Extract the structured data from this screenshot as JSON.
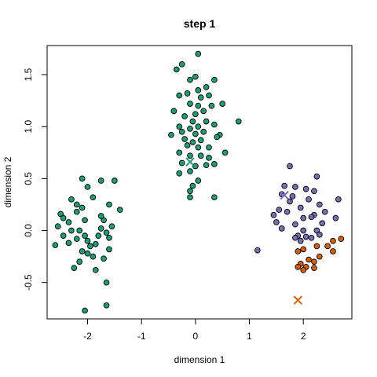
{
  "chart_data": {
    "type": "scatter",
    "title": "step 1",
    "xlabel": "dimension 1",
    "ylabel": "dimension 2",
    "xlim": [
      -2.75,
      2.9
    ],
    "ylim": [
      -0.85,
      1.78
    ],
    "x_ticks": [
      -2,
      -1,
      0,
      1,
      2
    ],
    "x_tick_labels": [
      "-2",
      "-1",
      "0",
      "1",
      "2"
    ],
    "y_ticks": [
      -0.5,
      0.0,
      0.5,
      1.0,
      1.5
    ],
    "y_tick_labels": [
      "-0.5",
      "0.0",
      "0.5",
      "1.0",
      "1.5"
    ],
    "grid": false,
    "legend": "none",
    "point_edge_color": "#000000",
    "series": [
      {
        "color": "#1b9e77",
        "points": [
          [
            -2.5,
            0.16
          ],
          [
            -2.45,
            0.12
          ],
          [
            -2.35,
            0.08
          ],
          [
            -2.55,
            0.04
          ],
          [
            -2.3,
            0.0
          ],
          [
            -2.45,
            -0.05
          ],
          [
            -2.6,
            -0.14
          ],
          [
            -2.35,
            -0.12
          ],
          [
            -2.2,
            0.18
          ],
          [
            -2.1,
            0.22
          ],
          [
            -2.05,
            0.1
          ],
          [
            -2.15,
            0.0
          ],
          [
            -2.2,
            -0.08
          ],
          [
            -2.05,
            -0.05
          ],
          [
            -2.0,
            -0.1
          ],
          [
            -1.95,
            -0.15
          ],
          [
            -2.1,
            -0.2
          ],
          [
            -2.0,
            -0.22
          ],
          [
            -2.15,
            -0.3
          ],
          [
            -2.25,
            -0.36
          ],
          [
            -1.9,
            -0.25
          ],
          [
            -1.85,
            -0.13
          ],
          [
            -1.8,
            -0.05
          ],
          [
            -1.75,
            0.02
          ],
          [
            -1.7,
            0.1
          ],
          [
            -1.75,
            0.14
          ],
          [
            -1.65,
            -0.02
          ],
          [
            -1.6,
            -0.07
          ],
          [
            -1.6,
            -0.18
          ],
          [
            -1.7,
            -0.27
          ],
          [
            -1.55,
            0.04
          ],
          [
            -1.6,
            0.25
          ],
          [
            -1.5,
            0.48
          ],
          [
            -1.75,
            0.48
          ],
          [
            -2.1,
            0.5
          ],
          [
            -2.0,
            0.42
          ],
          [
            -1.9,
            0.32
          ],
          [
            -1.4,
            0.2
          ],
          [
            -2.3,
            0.3
          ],
          [
            -2.2,
            0.25
          ],
          [
            -1.85,
            -0.38
          ],
          [
            -1.65,
            -0.5
          ],
          [
            -1.65,
            -0.72
          ],
          [
            -2.05,
            -0.77
          ]
        ]
      },
      {
        "color": "#1b9e77",
        "points": [
          [
            0.05,
            1.7
          ],
          [
            -0.35,
            1.55
          ],
          [
            -0.25,
            1.6
          ],
          [
            0.0,
            1.48
          ],
          [
            -0.1,
            1.45
          ],
          [
            0.35,
            1.45
          ],
          [
            0.2,
            1.38
          ],
          [
            0.05,
            1.35
          ],
          [
            -0.3,
            1.3
          ],
          [
            -0.15,
            1.32
          ],
          [
            0.1,
            1.28
          ],
          [
            0.25,
            1.3
          ],
          [
            -0.1,
            1.22
          ],
          [
            0.05,
            1.2
          ],
          [
            0.3,
            1.2
          ],
          [
            0.5,
            1.22
          ],
          [
            -0.4,
            1.15
          ],
          [
            -0.2,
            1.1
          ],
          [
            0.0,
            1.12
          ],
          [
            0.15,
            1.15
          ],
          [
            -0.05,
            1.05
          ],
          [
            0.2,
            1.05
          ],
          [
            -0.3,
            1.0
          ],
          [
            -0.1,
            0.98
          ],
          [
            0.05,
            1.0
          ],
          [
            0.35,
            1.02
          ],
          [
            0.8,
            1.05
          ],
          [
            -0.25,
            0.95
          ],
          [
            0.0,
            0.93
          ],
          [
            0.15,
            0.95
          ],
          [
            0.45,
            0.92
          ],
          [
            -0.45,
            0.92
          ],
          [
            -0.2,
            0.88
          ],
          [
            -0.05,
            0.85
          ],
          [
            0.1,
            0.87
          ],
          [
            0.4,
            0.9
          ],
          [
            -0.15,
            0.82
          ],
          [
            0.05,
            0.8
          ],
          [
            0.25,
            0.8
          ],
          [
            -0.3,
            0.75
          ],
          [
            -0.1,
            0.72
          ],
          [
            0.1,
            0.72
          ],
          [
            0.25,
            0.7
          ],
          [
            0.55,
            0.75
          ],
          [
            -0.25,
            0.65
          ],
          [
            0.0,
            0.62
          ],
          [
            0.2,
            0.63
          ],
          [
            0.35,
            0.64
          ],
          [
            -0.1,
            0.57
          ],
          [
            -0.3,
            0.55
          ],
          [
            0.05,
            0.48
          ],
          [
            -0.05,
            0.43
          ],
          [
            -0.1,
            0.38
          ],
          [
            0.35,
            0.32
          ],
          [
            -0.1,
            0.32
          ]
        ]
      },
      {
        "color": "#7570b3",
        "points": [
          [
            1.75,
            0.62
          ],
          [
            2.25,
            0.52
          ],
          [
            1.65,
            0.43
          ],
          [
            1.85,
            0.42
          ],
          [
            2.05,
            0.4
          ],
          [
            2.2,
            0.38
          ],
          [
            1.6,
            0.35
          ],
          [
            1.8,
            0.33
          ],
          [
            2.1,
            0.3
          ],
          [
            2.65,
            0.3
          ],
          [
            1.75,
            0.28
          ],
          [
            1.95,
            0.22
          ],
          [
            2.3,
            0.25
          ],
          [
            1.55,
            0.2
          ],
          [
            1.7,
            0.18
          ],
          [
            2.2,
            0.15
          ],
          [
            2.4,
            0.18
          ],
          [
            1.45,
            0.15
          ],
          [
            2.0,
            0.12
          ],
          [
            2.15,
            0.13
          ],
          [
            2.6,
            0.12
          ],
          [
            1.5,
            0.08
          ],
          [
            1.85,
            0.06
          ],
          [
            2.35,
            0.07
          ],
          [
            1.6,
            0.02
          ],
          [
            2.0,
            0.0
          ],
          [
            2.25,
            0.0
          ],
          [
            1.9,
            -0.05
          ],
          [
            2.05,
            -0.06
          ],
          [
            2.15,
            -0.07
          ],
          [
            1.95,
            -0.1
          ],
          [
            1.85,
            -0.07
          ],
          [
            2.3,
            -0.04
          ],
          [
            1.15,
            -0.19
          ]
        ]
      },
      {
        "color": "#d95f02",
        "points": [
          [
            2.7,
            -0.08
          ],
          [
            2.55,
            -0.1
          ],
          [
            2.45,
            -0.15
          ],
          [
            2.25,
            -0.15
          ],
          [
            2.0,
            -0.18
          ],
          [
            1.9,
            -0.2
          ],
          [
            2.55,
            -0.2
          ],
          [
            2.3,
            -0.25
          ],
          [
            2.1,
            -0.28
          ],
          [
            2.2,
            -0.3
          ],
          [
            1.95,
            -0.32
          ],
          [
            1.9,
            -0.35
          ],
          [
            2.05,
            -0.35
          ],
          [
            2.2,
            -0.36
          ],
          [
            2.0,
            -0.38
          ]
        ]
      }
    ],
    "centroids": [
      {
        "color": "#1b9e77",
        "x": -0.1,
        "y": 0.66
      },
      {
        "color": "#7570b3",
        "x": 1.65,
        "y": 0.34
      },
      {
        "color": "#d95f02",
        "x": 1.9,
        "y": -0.67
      }
    ]
  }
}
